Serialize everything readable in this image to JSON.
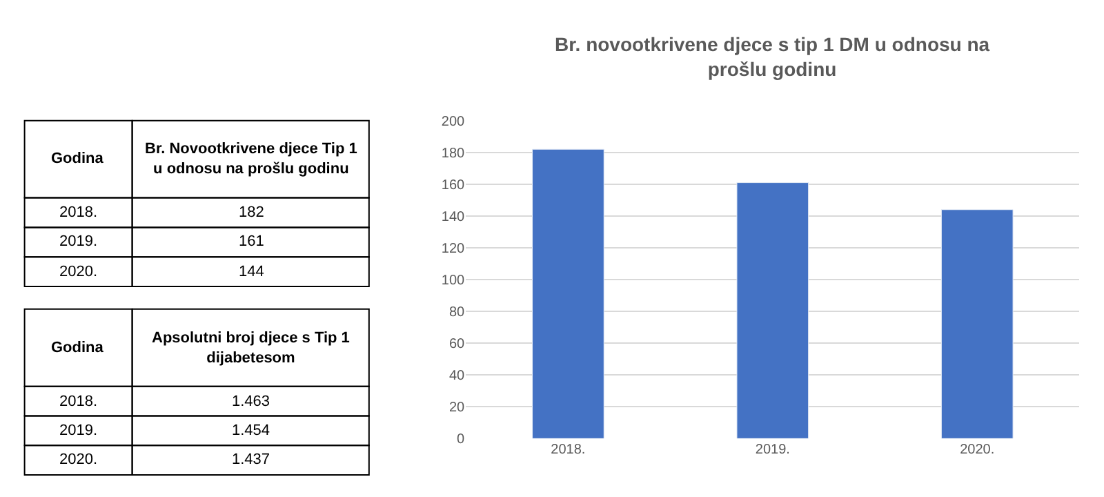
{
  "chart_data": [
    {
      "type": "other",
      "annotations": [
        "Godina",
        "Br. Novootkrivene djece Tip 1 u odnosu na prošlu godinu",
        "2018.",
        "182",
        "2019.",
        "161",
        "2020.",
        "144",
        "Godina",
        "Apsolutni broj djece s Tip 1 dijabetesom",
        "2018.",
        "1.463",
        "2019.",
        "1.454",
        "2020.",
        "1.437"
      ]
    },
    {
      "type": "bar",
      "title": "Br. novootkrivene djece s tip 1 DM u odnosu na prošlu godinu",
      "categories": [
        "2018.",
        "2019.",
        "2020."
      ],
      "values": [
        182,
        161,
        144
      ],
      "color": "#4472c4",
      "ylim": [
        0,
        200
      ],
      "yticks": [
        0,
        20,
        40,
        60,
        80,
        100,
        120,
        140,
        160,
        180,
        200
      ],
      "grid": "y"
    }
  ]
}
